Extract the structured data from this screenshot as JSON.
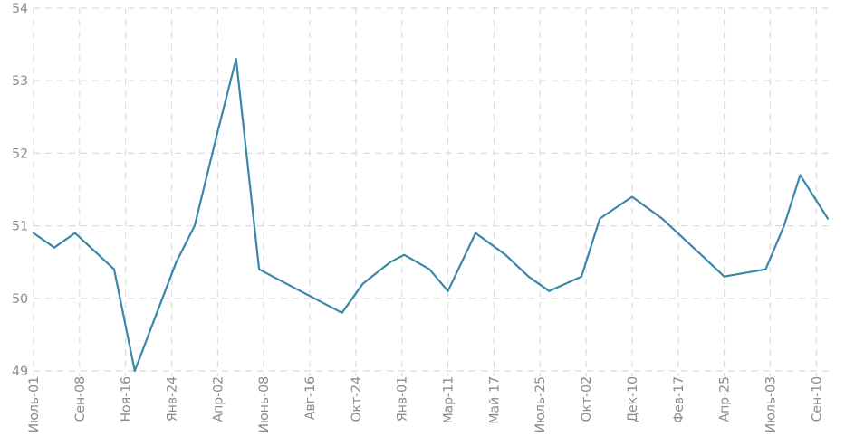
{
  "chart_data": {
    "type": "line",
    "title": "",
    "xlabel": "",
    "ylabel": "",
    "ylim": [
      49,
      54
    ],
    "yticks": [
      49,
      50,
      51,
      52,
      53,
      54
    ],
    "grid": true,
    "legend": "none",
    "x_tick_labels": [
      "Июль-01",
      "Сен-08",
      "Ноя-16",
      "Янв-24",
      "Апр-02",
      "Июнь-08",
      "Авг-16",
      "Окт-24",
      "Янв-01",
      "Мар-11",
      "Май-17",
      "Июль-25",
      "Окт-02",
      "Дек-10",
      "Фев-17",
      "Апр-25",
      "Июль-03",
      "Сен-10"
    ],
    "x_tick_positions": [
      0,
      2,
      4,
      6,
      8,
      10,
      12,
      14,
      16,
      18,
      20,
      22,
      24,
      26,
      28,
      30,
      32,
      34
    ],
    "x_range": [
      0,
      34.5
    ],
    "series": [
      {
        "color": "#3a87a8",
        "x": [
          0,
          0.9,
          1.8,
          3.5,
          4.4,
          6.2,
          7.0,
          8.0,
          8.8,
          9.8,
          11.0,
          12.2,
          13.4,
          14.3,
          15.5,
          16.1,
          17.2,
          18.0,
          19.2,
          20.5,
          21.5,
          22.4,
          23.8,
          24.6,
          26.0,
          27.3,
          29.0,
          30.0,
          31.8,
          32.6,
          33.3,
          34.5
        ],
        "values": [
          50.9,
          50.7,
          50.9,
          50.4,
          49.0,
          50.5,
          51.0,
          52.3,
          53.3,
          50.4,
          50.2,
          50.0,
          49.8,
          50.2,
          50.5,
          50.6,
          50.4,
          50.1,
          50.9,
          50.6,
          50.3,
          50.1,
          50.3,
          51.1,
          51.4,
          51.1,
          50.6,
          50.3,
          50.4,
          51.0,
          51.7,
          51.1
        ]
      }
    ]
  }
}
